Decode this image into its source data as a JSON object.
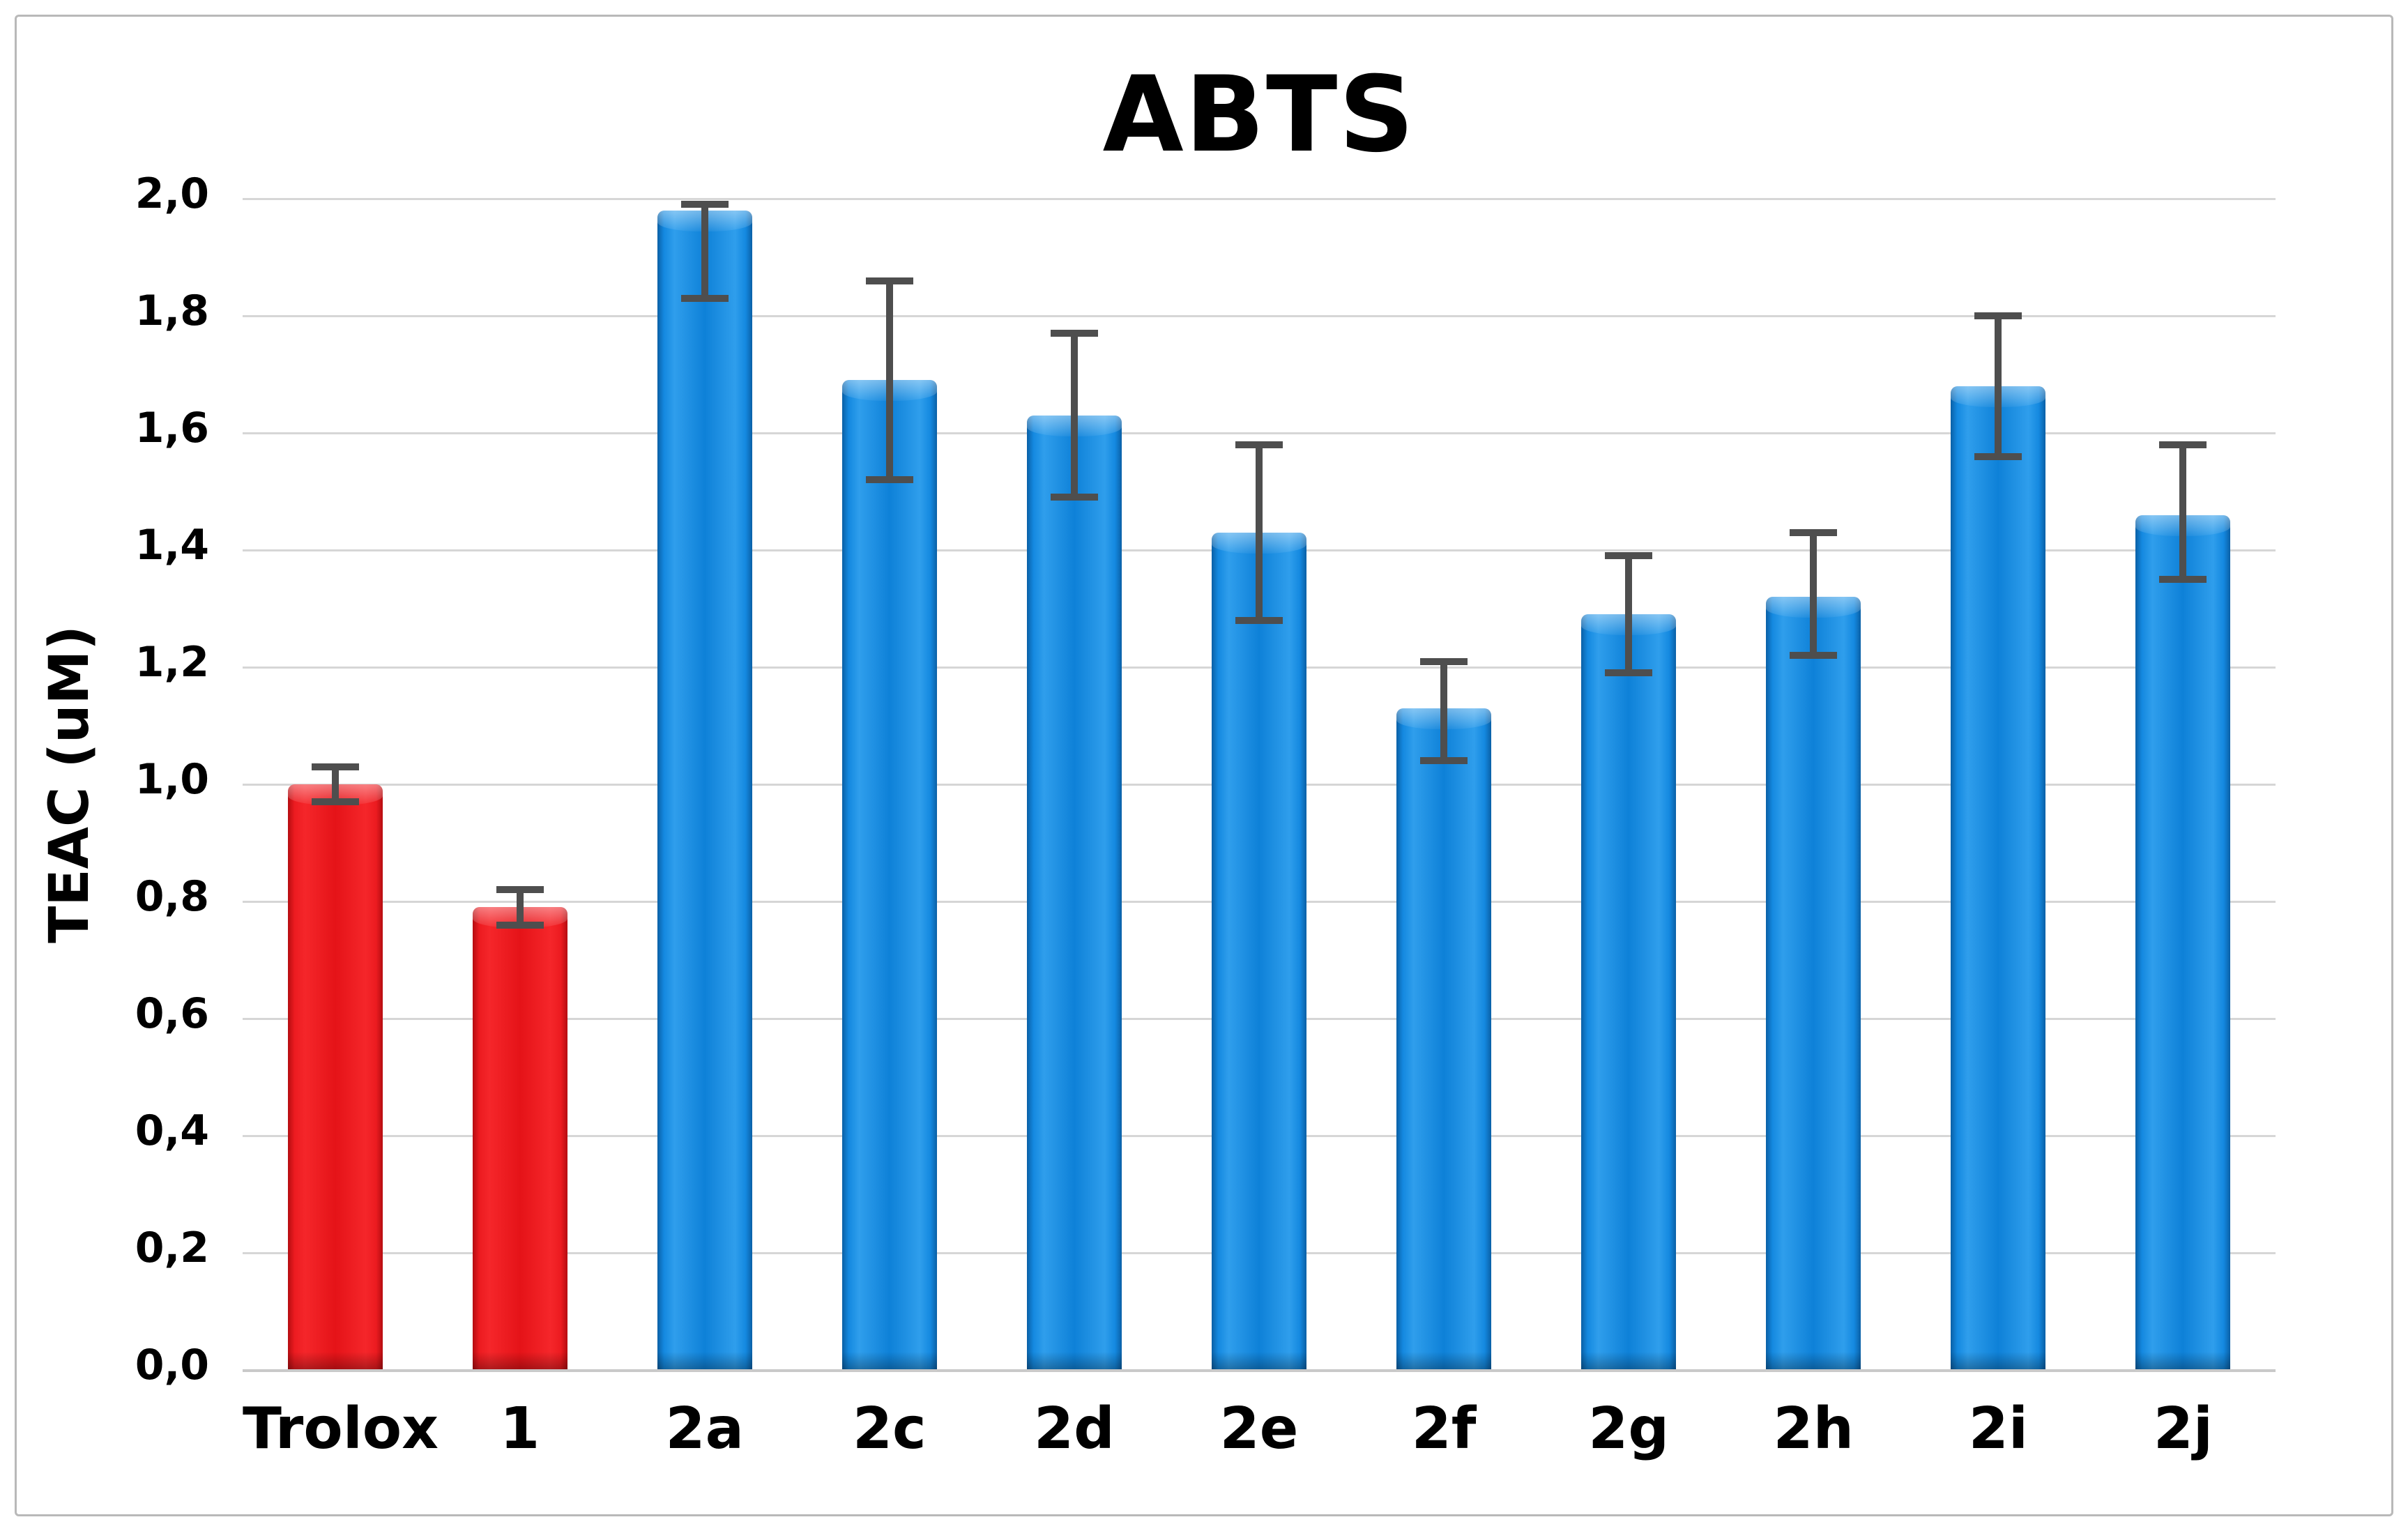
{
  "figure": {
    "background": "#ffffff",
    "border_color": "#b9b9b9"
  },
  "chart_data": {
    "type": "bar",
    "title": "ABTS",
    "xlabel": "",
    "ylabel": "TEAC (uM)",
    "ylim": [
      0.0,
      2.0
    ],
    "ytick_step": 0.2,
    "ytick_labels": [
      "0,0",
      "0,2",
      "0,4",
      "0,6",
      "0,8",
      "1,0",
      "1,2",
      "1,4",
      "1,6",
      "1,8",
      "2,0"
    ],
    "decimal_separator": "comma",
    "grid": true,
    "legend": "none",
    "categories": [
      "Trolox",
      "1",
      "2a",
      "2c",
      "2d",
      "2e",
      "2f",
      "2g",
      "2h",
      "2i",
      "2j"
    ],
    "values": [
      1.0,
      0.79,
      1.98,
      1.69,
      1.63,
      1.43,
      1.13,
      1.29,
      1.32,
      1.68,
      1.46
    ],
    "error_bar_top": [
      1.03,
      0.82,
      1.99,
      1.86,
      1.77,
      1.58,
      1.21,
      1.39,
      1.43,
      1.8,
      1.58
    ],
    "error_bar_bottom": [
      0.97,
      0.76,
      1.83,
      1.52,
      1.49,
      1.28,
      1.04,
      1.19,
      1.22,
      1.56,
      1.35
    ],
    "bar_color_names": [
      "red",
      "red",
      "blue",
      "blue",
      "blue",
      "blue",
      "blue",
      "blue",
      "blue",
      "blue",
      "blue"
    ],
    "colors": {
      "red_bar": "#e81318",
      "blue_bar": "#0e81d8",
      "error_bar": "#4e4e4e",
      "gridline": "#d6d6d6",
      "axis_line": "#c9c9c9",
      "text": "#000000"
    }
  }
}
